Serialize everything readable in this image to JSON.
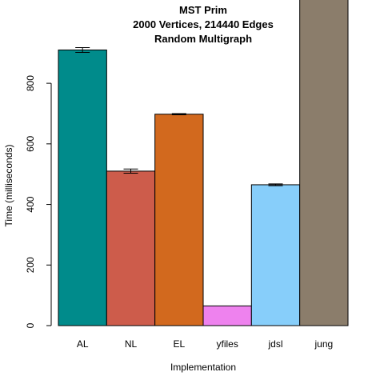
{
  "chart_data": {
    "type": "bar",
    "title": [
      "MST Prim",
      "2000 Vertices, 214440 Edges",
      "Random Multigraph"
    ],
    "xlabel": "Implementation",
    "ylabel": "Time (milliseconds)",
    "categories": [
      "AL",
      "NL",
      "EL",
      "yfiles",
      "jdsl",
      "jung"
    ],
    "values": [
      910,
      510,
      698,
      65,
      465,
      1120
    ],
    "errors": [
      8,
      7,
      2,
      0,
      3,
      0
    ],
    "colors": [
      "#008b8b",
      "#cd5c4b",
      "#d2691e",
      "#ee82ee",
      "#87cefa",
      "#8b7d6b"
    ],
    "ylim": [
      0,
      1075
    ],
    "yticks": [
      0,
      200,
      400,
      600,
      800
    ],
    "grid": false
  }
}
